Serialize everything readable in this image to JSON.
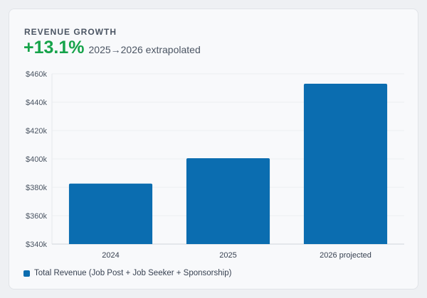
{
  "card": {
    "title": "REVENUE GROWTH",
    "growth": "+13.1%",
    "growth_note": "2025→2026 extrapolated"
  },
  "chart_data": {
    "type": "bar",
    "categories": [
      "2024",
      "2025",
      "2026 projected"
    ],
    "series": [
      {
        "name": "Total Revenue (Job Post + Job Seeker + Sponsorship)",
        "values": [
          382600,
          400500,
          453000
        ],
        "color": "#0b6db0"
      }
    ],
    "yticks": [
      "$340k",
      "$360k",
      "$380k",
      "$400k",
      "$420k",
      "$440k",
      "$460k"
    ],
    "ylim": [
      340000,
      460000
    ],
    "grid": true,
    "legend": "bottom-left"
  }
}
